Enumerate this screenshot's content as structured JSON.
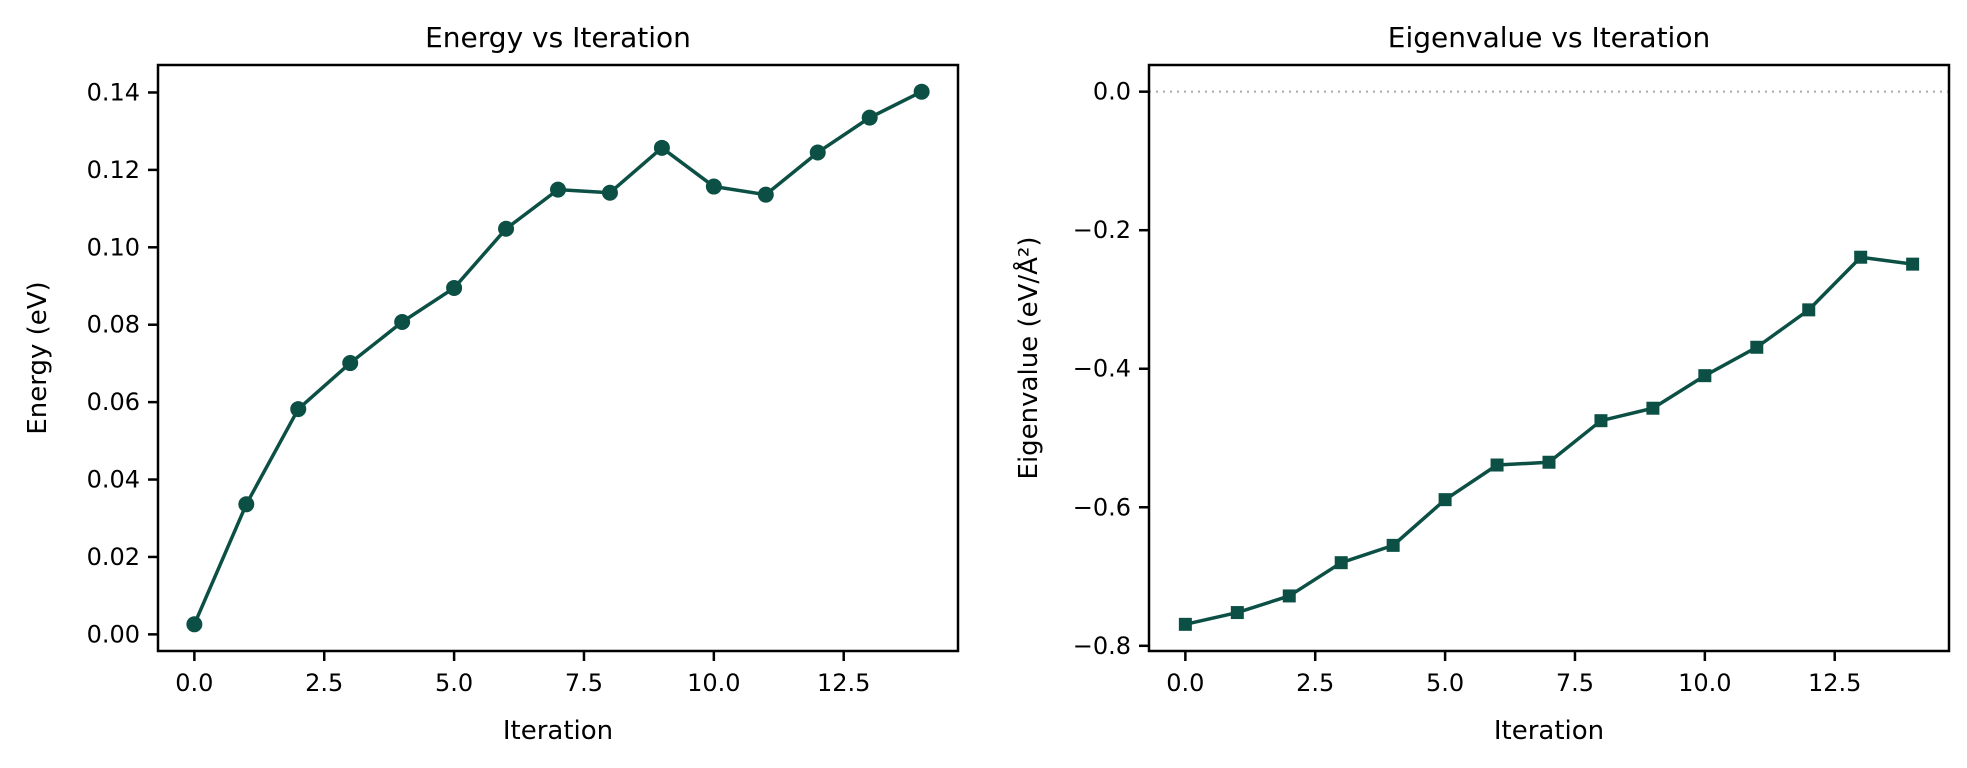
{
  "figure": {
    "background": "#ffffff",
    "text_color": "#000000",
    "spine_color": "#000000",
    "series_color": "#0c5045"
  },
  "chart_data": [
    {
      "type": "line",
      "title": "Energy vs Iteration",
      "xlabel": "Iteration",
      "ylabel": "Energy (eV)",
      "marker": "circle",
      "color": "#0c5045",
      "x": [
        0,
        1,
        2,
        3,
        4,
        5,
        6,
        7,
        8,
        9,
        10,
        11,
        12,
        13,
        14
      ],
      "y": [
        0.0026,
        0.0336,
        0.0582,
        0.0701,
        0.0807,
        0.0895,
        0.1048,
        0.1149,
        0.1141,
        0.1257,
        0.1157,
        0.1136,
        0.1245,
        0.1335,
        0.1402
      ],
      "xlim": [
        -0.7,
        14.7
      ],
      "ylim": [
        -0.0043,
        0.1471
      ],
      "xticks": {
        "values": [
          0,
          2.5,
          5,
          7.5,
          10,
          12.5
        ],
        "labels": [
          "0.0",
          "2.5",
          "5.0",
          "7.5",
          "10.0",
          "12.5"
        ]
      },
      "yticks": {
        "values": [
          0,
          0.02,
          0.04,
          0.06,
          0.08,
          0.1,
          0.12,
          0.14
        ],
        "labels": [
          "0.00",
          "0.02",
          "0.04",
          "0.06",
          "0.08",
          "0.10",
          "0.12",
          "0.14"
        ]
      },
      "grid": false,
      "legend": null,
      "zero_line": null
    },
    {
      "type": "line",
      "title": "Eigenvalue vs Iteration",
      "xlabel": "Iteration",
      "ylabel": "Eigenvalue (eV/Å²)",
      "marker": "square",
      "color": "#0c5045",
      "x": [
        0,
        1,
        2,
        3,
        4,
        5,
        6,
        7,
        8,
        9,
        10,
        11,
        12,
        13,
        14
      ],
      "y": [
        -0.769,
        -0.752,
        -0.728,
        -0.68,
        -0.655,
        -0.589,
        -0.539,
        -0.535,
        -0.475,
        -0.457,
        -0.41,
        -0.369,
        -0.315,
        -0.239,
        -0.249
      ],
      "xlim": [
        -0.7,
        14.7
      ],
      "ylim": [
        -0.8075,
        0.0385
      ],
      "xticks": {
        "values": [
          0,
          2.5,
          5,
          7.5,
          10,
          12.5
        ],
        "labels": [
          "0.0",
          "2.5",
          "5.0",
          "7.5",
          "10.0",
          "12.5"
        ]
      },
      "yticks": {
        "values": [
          0.0,
          -0.2,
          -0.4,
          -0.6,
          -0.8
        ],
        "labels": [
          "0.0",
          "−0.2",
          "−0.4",
          "−0.6",
          "−0.8"
        ]
      },
      "grid": false,
      "legend": null,
      "zero_line": {
        "y": 0.0,
        "color": "#aaaaaa",
        "style": "dotted"
      }
    }
  ]
}
